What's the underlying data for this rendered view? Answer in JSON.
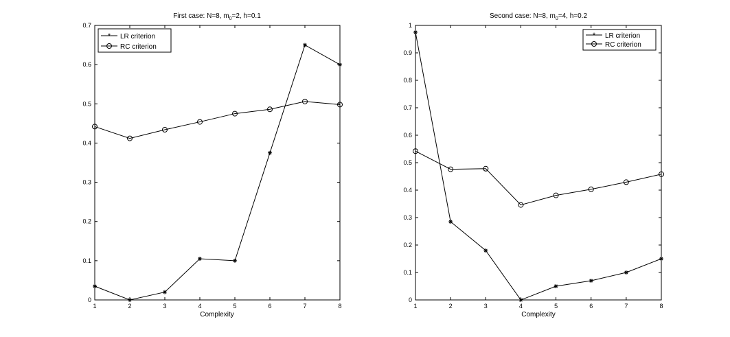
{
  "chart_data": [
    {
      "type": "line",
      "title": "First case: N=8, m",
      "title_sub": "0",
      "title_tail": "=2, h=0.1",
      "xlabel": "Complexity",
      "ylabel": "",
      "x": [
        1,
        2,
        3,
        4,
        5,
        6,
        7,
        8
      ],
      "xlim": [
        1,
        8
      ],
      "ylim": [
        0,
        0.7
      ],
      "xticks": [
        "1",
        "2",
        "3",
        "4",
        "5",
        "6",
        "7",
        "8"
      ],
      "yticks": [
        "0",
        "0.1",
        "0.2",
        "0.3",
        "0.4",
        "0.5",
        "0.6",
        "0.7"
      ],
      "grid": false,
      "legend_position": "top-left",
      "series": [
        {
          "name": "LR criterion",
          "marker": "asterisk",
          "color": "#000000",
          "values": [
            0.035,
            0.0,
            0.02,
            0.105,
            0.1,
            0.375,
            0.65,
            0.6
          ]
        },
        {
          "name": "RC criterion",
          "marker": "circle",
          "color": "#000000",
          "values": [
            0.442,
            0.412,
            0.434,
            0.454,
            0.475,
            0.486,
            0.506,
            0.498
          ]
        }
      ]
    },
    {
      "type": "line",
      "title": "Second case: N=8, m",
      "title_sub": "0",
      "title_tail": "=4, h=0.2",
      "xlabel": "Complexity",
      "ylabel": "",
      "x": [
        1,
        2,
        3,
        4,
        5,
        6,
        7,
        8
      ],
      "xlim": [
        1,
        8
      ],
      "ylim": [
        0,
        1
      ],
      "xticks": [
        "1",
        "2",
        "3",
        "4",
        "5",
        "6",
        "7",
        "8"
      ],
      "yticks": [
        "0",
        "0.1",
        "0.2",
        "0.3",
        "0.4",
        "0.5",
        "0.6",
        "0.7",
        "0.8",
        "0.9",
        "1"
      ],
      "grid": false,
      "legend_position": "top-right",
      "series": [
        {
          "name": "LR criterion",
          "marker": "asterisk",
          "color": "#000000",
          "values": [
            0.975,
            0.285,
            0.18,
            0.0,
            0.05,
            0.07,
            0.1,
            0.15
          ]
        },
        {
          "name": "RC criterion",
          "marker": "circle",
          "color": "#000000",
          "values": [
            0.542,
            0.476,
            0.478,
            0.346,
            0.381,
            0.403,
            0.429,
            0.458
          ]
        }
      ]
    }
  ]
}
